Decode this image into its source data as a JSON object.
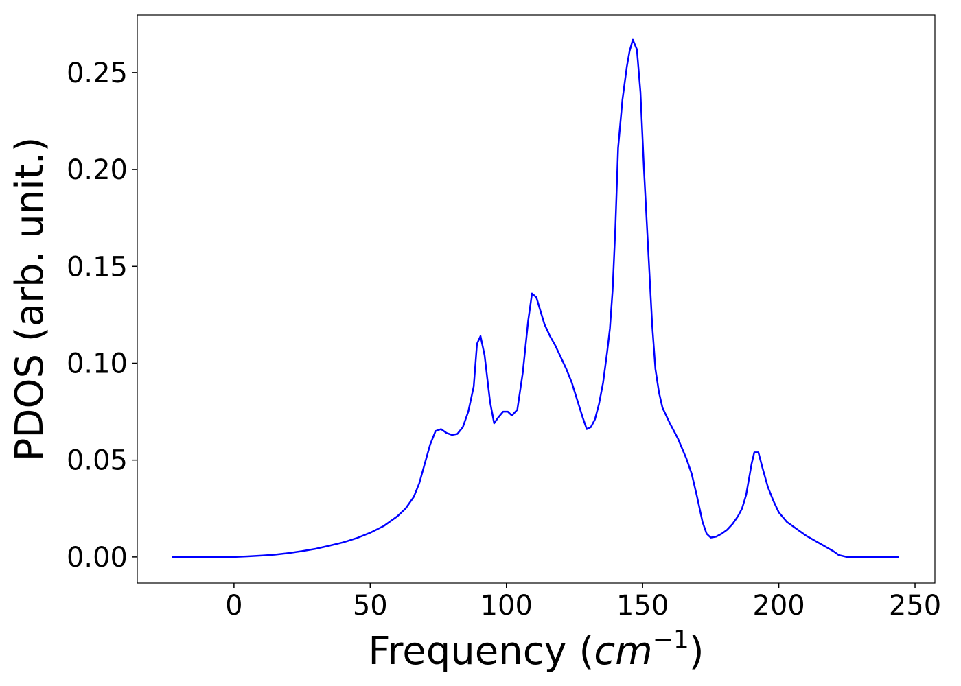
{
  "chart_data": {
    "type": "line",
    "xlabel": [
      "Frequency (",
      "cm",
      "−1",
      ")"
    ],
    "ylabel": "PDOS (arb. unit.)",
    "xlim": [
      -35.5,
      257.3
    ],
    "ylim": [
      -0.0135,
      0.2797
    ],
    "xticks": [
      0,
      50,
      100,
      150,
      200,
      250
    ],
    "yticks": [
      {
        "value": 0,
        "label": "0.00"
      },
      {
        "value": 0.05,
        "label": "0.05"
      },
      {
        "value": 0.1,
        "label": "0.10"
      },
      {
        "value": 0.15,
        "label": "0.15"
      },
      {
        "value": 0.2,
        "label": "0.20"
      },
      {
        "value": 0.25,
        "label": "0.25"
      }
    ],
    "series": [
      {
        "color": "#0000ff",
        "x": [
          -22.7,
          0,
          5,
          10,
          15,
          20,
          25,
          30,
          35,
          40,
          45,
          50,
          55,
          60,
          63,
          66,
          68,
          70,
          72,
          74,
          76,
          78,
          80,
          82,
          84,
          86,
          88,
          89.2,
          90.5,
          92,
          94,
          95.5,
          97,
          98.8,
          100.5,
          102,
          104,
          106,
          108,
          109.4,
          111,
          112.5,
          114,
          116,
          118,
          120,
          122,
          124,
          126,
          128,
          129.5,
          131,
          132.5,
          134,
          135.5,
          137,
          138,
          139,
          140,
          141,
          142.6,
          144.2,
          145.2,
          146.4,
          147.9,
          149.2,
          150.5,
          152,
          153.5,
          154.7,
          156,
          157.3,
          160,
          163,
          166,
          168,
          170,
          172,
          173.5,
          175,
          177,
          179,
          181,
          183,
          185,
          186.5,
          188,
          189,
          190,
          191,
          192.5,
          194,
          196,
          198,
          200,
          203,
          206,
          210,
          215,
          220,
          222,
          225,
          244
        ],
        "values": [
          0,
          0,
          0.0003,
          0.0007,
          0.0012,
          0.002,
          0.003,
          0.0042,
          0.0058,
          0.0075,
          0.0097,
          0.0125,
          0.016,
          0.021,
          0.025,
          0.031,
          0.038,
          0.048,
          0.058,
          0.065,
          0.066,
          0.064,
          0.063,
          0.0635,
          0.067,
          0.075,
          0.088,
          0.11,
          0.114,
          0.104,
          0.08,
          0.069,
          0.072,
          0.075,
          0.075,
          0.073,
          0.076,
          0.095,
          0.122,
          0.136,
          0.134,
          0.127,
          0.12,
          0.114,
          0.109,
          0.103,
          0.097,
          0.09,
          0.081,
          0.072,
          0.066,
          0.067,
          0.071,
          0.079,
          0.09,
          0.106,
          0.118,
          0.138,
          0.17,
          0.211,
          0.236,
          0.253,
          0.261,
          0.267,
          0.262,
          0.24,
          0.2,
          0.16,
          0.12,
          0.097,
          0.085,
          0.077,
          0.069,
          0.061,
          0.051,
          0.043,
          0.031,
          0.018,
          0.012,
          0.01,
          0.0105,
          0.012,
          0.014,
          0.017,
          0.021,
          0.025,
          0.032,
          0.04,
          0.048,
          0.054,
          0.054,
          0.046,
          0.036,
          0.029,
          0.023,
          0.018,
          0.015,
          0.011,
          0.007,
          0.003,
          0.001,
          0,
          0
        ]
      }
    ]
  }
}
